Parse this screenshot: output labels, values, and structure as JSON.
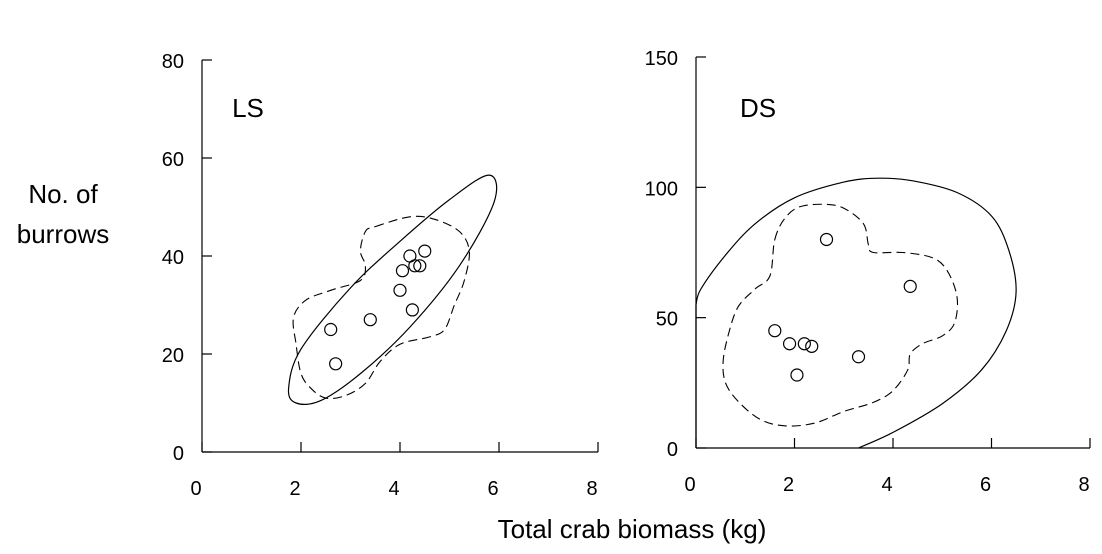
{
  "figure": {
    "ylabel_line1": "No. of",
    "ylabel_line2": "burrows",
    "xlabel": "Total crab biomass (kg)"
  },
  "chart_data": [
    {
      "type": "scatter",
      "panel": "LS",
      "title": "LS",
      "xlim": [
        0,
        8
      ],
      "ylim": [
        0,
        80
      ],
      "xticks": [
        0,
        2,
        4,
        6,
        8
      ],
      "yticks": [
        0,
        20,
        40,
        60,
        80
      ],
      "xtick_labels": [
        "0",
        "2",
        "4",
        "6",
        "8"
      ],
      "ytick_labels": [
        "0",
        "20",
        "40",
        "60",
        "80"
      ],
      "points": [
        {
          "x": 2.6,
          "y": 25
        },
        {
          "x": 2.7,
          "y": 18
        },
        {
          "x": 3.4,
          "y": 27
        },
        {
          "x": 4.0,
          "y": 33
        },
        {
          "x": 4.05,
          "y": 37
        },
        {
          "x": 4.2,
          "y": 40
        },
        {
          "x": 4.3,
          "y": 38
        },
        {
          "x": 4.4,
          "y": 38
        },
        {
          "x": 4.5,
          "y": 41
        },
        {
          "x": 4.25,
          "y": 29
        }
      ],
      "solid_envelope": [
        [
          5.8,
          56.5
        ],
        [
          5.0,
          51.5
        ],
        [
          4.0,
          43.0
        ],
        [
          3.0,
          33.5
        ],
        [
          2.0,
          21.0
        ],
        [
          1.75,
          13.0
        ],
        [
          1.9,
          10.0
        ],
        [
          2.4,
          10.5
        ],
        [
          3.2,
          16.0
        ],
        [
          4.2,
          25.5
        ],
        [
          5.2,
          38.0
        ],
        [
          5.9,
          51.0
        ],
        [
          5.8,
          56.5
        ]
      ],
      "dashed_envelope": [
        [
          3.5,
          46.0
        ],
        [
          4.2,
          48.0
        ],
        [
          4.7,
          47.5
        ],
        [
          5.2,
          45.0
        ],
        [
          5.4,
          41.0
        ],
        [
          5.3,
          35.0
        ],
        [
          5.1,
          30.0
        ],
        [
          4.9,
          25.0
        ],
        [
          4.6,
          23.5
        ],
        [
          4.0,
          22.0
        ],
        [
          3.6,
          18.5
        ],
        [
          3.3,
          14.0
        ],
        [
          2.9,
          11.5
        ],
        [
          2.5,
          11.0
        ],
        [
          2.2,
          13.0
        ],
        [
          2.0,
          16.0
        ],
        [
          1.9,
          22.0
        ],
        [
          1.85,
          27.5
        ],
        [
          2.1,
          31.0
        ],
        [
          2.6,
          33.0
        ],
        [
          3.2,
          35.0
        ],
        [
          3.3,
          38.0
        ],
        [
          3.2,
          41.0
        ],
        [
          3.3,
          45.0
        ],
        [
          3.5,
          46.0
        ]
      ]
    },
    {
      "type": "scatter",
      "panel": "DS",
      "title": "DS",
      "xlim": [
        0,
        8
      ],
      "ylim": [
        0,
        150
      ],
      "xticks": [
        0,
        2,
        4,
        6,
        8
      ],
      "yticks": [
        0,
        50,
        100,
        150
      ],
      "xtick_labels": [
        "0",
        "2",
        "4",
        "6",
        "8"
      ],
      "ytick_labels": [
        "0",
        "50",
        "100",
        "150"
      ],
      "points": [
        {
          "x": 2.65,
          "y": 80
        },
        {
          "x": 4.35,
          "y": 62
        },
        {
          "x": 1.6,
          "y": 45
        },
        {
          "x": 1.9,
          "y": 40
        },
        {
          "x": 2.2,
          "y": 40
        },
        {
          "x": 2.35,
          "y": 39
        },
        {
          "x": 3.3,
          "y": 35
        },
        {
          "x": 2.05,
          "y": 28
        }
      ],
      "solid_envelope": [
        [
          3.3,
          0
        ],
        [
          4.0,
          6.0
        ],
        [
          5.0,
          17.0
        ],
        [
          5.8,
          30.0
        ],
        [
          6.3,
          45.0
        ],
        [
          6.5,
          60.0
        ],
        [
          6.35,
          76.0
        ],
        [
          6.0,
          89.0
        ],
        [
          5.3,
          98.0
        ],
        [
          4.4,
          102.5
        ],
        [
          3.7,
          103.5
        ],
        [
          3.0,
          102.0
        ],
        [
          2.0,
          96.0
        ],
        [
          1.2,
          86.0
        ],
        [
          0.6,
          74.0
        ],
        [
          0.1,
          61.0
        ],
        [
          0.0,
          55.0
        ]
      ],
      "solid_envelope_extra": [
        [
          0.0,
          55.0
        ],
        [
          0.0,
          0.0
        ]
      ],
      "dashed_envelope": [
        [
          1.6,
          80.0
        ],
        [
          1.8,
          88.0
        ],
        [
          2.1,
          92.5
        ],
        [
          2.6,
          93.5
        ],
        [
          3.0,
          92.0
        ],
        [
          3.4,
          86.0
        ],
        [
          3.5,
          78.0
        ],
        [
          3.6,
          75.0
        ],
        [
          4.2,
          75.0
        ],
        [
          4.8,
          73.0
        ],
        [
          5.1,
          68.0
        ],
        [
          5.3,
          58.0
        ],
        [
          5.25,
          48.0
        ],
        [
          5.0,
          43.0
        ],
        [
          4.6,
          40.0
        ],
        [
          4.35,
          36.0
        ],
        [
          4.3,
          30.0
        ],
        [
          4.0,
          22.0
        ],
        [
          3.6,
          17.5
        ],
        [
          3.0,
          14.0
        ],
        [
          2.4,
          9.5
        ],
        [
          1.8,
          8.5
        ],
        [
          1.3,
          11.0
        ],
        [
          0.85,
          18.0
        ],
        [
          0.6,
          25.0
        ],
        [
          0.55,
          33.0
        ],
        [
          0.65,
          43.0
        ],
        [
          0.85,
          54.0
        ],
        [
          1.2,
          61.0
        ],
        [
          1.5,
          66.0
        ],
        [
          1.6,
          80.0
        ]
      ]
    }
  ]
}
